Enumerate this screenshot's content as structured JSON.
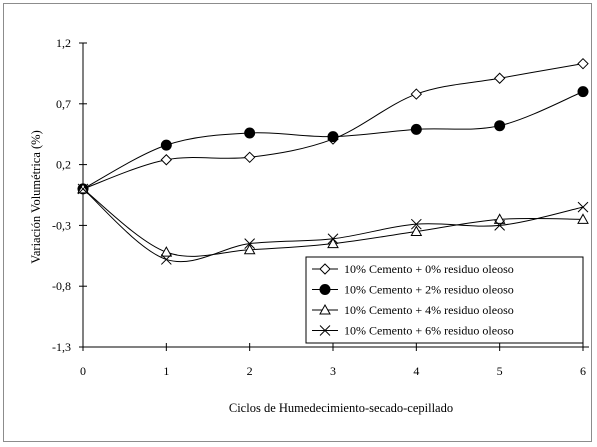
{
  "chart_data": {
    "type": "line",
    "title": "",
    "xlabel": "Ciclos de Humedecimiento-secado-cepillado",
    "ylabel": "Variación Volumétrica (%)",
    "xlim": [
      0,
      6
    ],
    "ylim": [
      -1.3,
      1.2
    ],
    "x_ticks": [
      "0",
      "1",
      "2",
      "3",
      "4",
      "5",
      "6"
    ],
    "y_ticks": [
      "1,2",
      "0,7",
      "0,2",
      "-0,3",
      "-0,8",
      "-1,3"
    ],
    "y_tick_values": [
      1.2,
      0.7,
      0.2,
      -0.3,
      -0.8,
      -1.3
    ],
    "grid": false,
    "legend_position": "bottom-right",
    "x": [
      0,
      1,
      2,
      3,
      4,
      5,
      6
    ],
    "series": [
      {
        "name": "10% Cemento + 0% residuo oleoso",
        "marker": "diamond-open",
        "values": [
          0.0,
          0.24,
          0.26,
          0.41,
          0.78,
          0.91,
          1.03
        ]
      },
      {
        "name": "10% Cemento + 2% residuo oleoso",
        "marker": "circle-filled",
        "values": [
          0.0,
          0.36,
          0.46,
          0.43,
          0.49,
          0.52,
          0.8
        ]
      },
      {
        "name": "10% Cemento + 4% residuo oleoso",
        "marker": "triangle-open",
        "values": [
          0.0,
          -0.52,
          -0.5,
          -0.45,
          -0.35,
          -0.25,
          -0.25
        ]
      },
      {
        "name": "10% Cemento + 6% residuo oleoso",
        "marker": "x",
        "values": [
          0.0,
          -0.58,
          -0.45,
          -0.41,
          -0.29,
          -0.3,
          -0.15
        ]
      }
    ]
  }
}
